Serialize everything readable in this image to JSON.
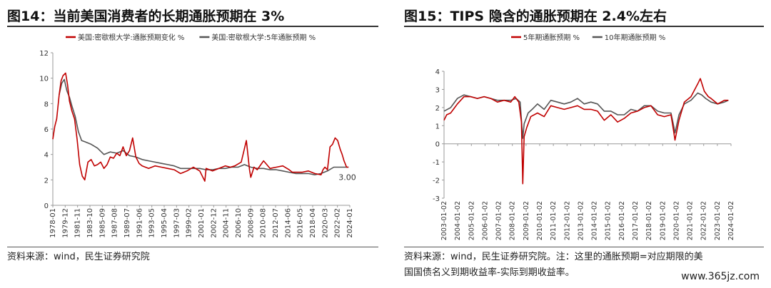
{
  "chart_data": [
    {
      "type": "line",
      "title": "图14：当前美国消费者的长期通胀预期在 3%",
      "xlabel": "",
      "ylabel": "",
      "ylim": [
        0,
        12
      ],
      "yticks": [
        "0",
        "2",
        "4",
        "6",
        "8",
        "10",
        "12"
      ],
      "xlim": [
        1978.0,
        2024.5
      ],
      "xtick_labels": [
        "1978-01",
        "1979-12",
        "1981-11",
        "1983-10",
        "1985-09",
        "1987-08",
        "1989-07",
        "1991-06",
        "1993-05",
        "1995-04",
        "1997-03",
        "1999-02",
        "2001-01",
        "2002-12",
        "2004-11",
        "2006-10",
        "2008-09",
        "2010-08",
        "2012-07",
        "2014-06",
        "2016-05",
        "2018-04",
        "2020-03",
        "2022-02",
        "2024-01"
      ],
      "grid": false,
      "legend": "top",
      "annotation": "3.00",
      "series": [
        {
          "name": "美国:密歇根大学:通胀预期变化 %",
          "color": "#c00000",
          "x": [
            1978.0,
            1978.3,
            1978.6,
            1979.0,
            1979.3,
            1979.6,
            1980.0,
            1980.3,
            1980.6,
            1981.0,
            1981.4,
            1981.8,
            1982.2,
            1982.6,
            1983.0,
            1983.5,
            1984.0,
            1984.5,
            1985.0,
            1985.5,
            1986.0,
            1986.5,
            1987.0,
            1987.5,
            1988.0,
            1988.5,
            1989.0,
            1989.5,
            1990.0,
            1990.5,
            1991.0,
            1991.5,
            1992.0,
            1993.0,
            1994.0,
            1995.0,
            1996.0,
            1997.0,
            1998.0,
            1999.0,
            2000.0,
            2001.0,
            2001.8,
            2002.0,
            2003.0,
            2004.0,
            2005.0,
            2005.8,
            2006.5,
            2007.5,
            2008.3,
            2008.8,
            2009.0,
            2009.5,
            2010.0,
            2011.0,
            2011.5,
            2012.0,
            2013.0,
            2014.0,
            2015.0,
            2015.5,
            2016.0,
            2017.0,
            2018.0,
            2019.0,
            2020.0,
            2020.3,
            2020.6,
            2021.0,
            2021.4,
            2021.8,
            2022.2,
            2022.6,
            2023.0,
            2023.3,
            2023.6,
            2024.0,
            2024.3
          ],
          "values": [
            5.2,
            6.2,
            6.8,
            8.7,
            9.8,
            10.2,
            10.4,
            9.5,
            8.2,
            7.4,
            6.8,
            5.2,
            3.2,
            2.3,
            2.0,
            3.4,
            3.6,
            3.1,
            3.2,
            3.4,
            2.9,
            3.2,
            3.8,
            3.7,
            4.1,
            3.9,
            4.6,
            3.9,
            4.3,
            5.3,
            3.8,
            3.3,
            3.1,
            2.9,
            3.1,
            3.0,
            2.9,
            2.8,
            2.5,
            2.7,
            3.0,
            2.7,
            1.9,
            2.9,
            2.7,
            2.9,
            3.1,
            3.0,
            3.1,
            3.4,
            5.1,
            2.8,
            2.2,
            3.0,
            2.8,
            3.5,
            3.2,
            2.9,
            3.0,
            3.1,
            2.8,
            2.6,
            2.6,
            2.6,
            2.7,
            2.5,
            2.4,
            2.8,
            3.0,
            2.8,
            4.6,
            4.8,
            5.3,
            5.1,
            4.4,
            4.0,
            3.5,
            3.0,
            3.0
          ]
        },
        {
          "name": "美国:密歇根大学:5年通胀预期 %",
          "color": "#555555",
          "x": [
            1979.0,
            1979.4,
            1979.8,
            1980.2,
            1980.6,
            1981.0,
            1981.5,
            1982.0,
            1982.5,
            1983.0,
            1984.0,
            1985.0,
            1986.0,
            1987.0,
            1988.0,
            1989.0,
            1990.0,
            1991.0,
            1992.0,
            1993.0,
            1994.0,
            1995.0,
            1996.0,
            1997.0,
            1998.0,
            1999.0,
            2000.0,
            2001.0,
            2002.0,
            2003.0,
            2004.0,
            2005.0,
            2006.0,
            2007.0,
            2008.0,
            2009.0,
            2010.0,
            2011.0,
            2012.0,
            2013.0,
            2014.0,
            2015.0,
            2016.0,
            2017.0,
            2018.0,
            2019.0,
            2020.0,
            2021.0,
            2022.0,
            2023.0,
            2023.5,
            2024.0,
            2024.3
          ],
          "values": [
            8.7,
            9.6,
            9.9,
            9.0,
            8.5,
            7.8,
            7.0,
            5.8,
            5.1,
            5.0,
            4.8,
            4.5,
            4.0,
            4.2,
            4.1,
            4.3,
            3.9,
            3.8,
            3.6,
            3.5,
            3.4,
            3.3,
            3.2,
            3.1,
            2.9,
            2.9,
            2.9,
            2.9,
            2.8,
            2.8,
            2.9,
            2.9,
            3.0,
            3.0,
            3.2,
            3.0,
            2.9,
            2.9,
            2.8,
            2.8,
            2.7,
            2.6,
            2.5,
            2.5,
            2.5,
            2.4,
            2.5,
            2.7,
            3.0,
            3.0,
            3.0,
            3.0,
            3.0
          ]
        }
      ]
    },
    {
      "type": "line",
      "title": "图15：TIPS 隐含的通胀预期在 2.4%左右",
      "xlabel": "",
      "ylabel": "",
      "ylim": [
        -3,
        4
      ],
      "yticks": [
        "-3",
        "-2",
        "-1",
        "0",
        "1",
        "2",
        "3",
        "4"
      ],
      "xlim": [
        2003.0,
        2024.5
      ],
      "xtick_labels": [
        "2003-01-02",
        "2004-01-02",
        "2005-01-02",
        "2006-01-02",
        "2007-01-02",
        "2008-01-02",
        "2009-01-02",
        "2010-01-02",
        "2011-01-02",
        "2012-01-02",
        "2013-01-02",
        "2014-01-02",
        "2015-01-02",
        "2016-01-02",
        "2017-01-02",
        "2018-01-02",
        "2019-01-02",
        "2020-01-02",
        "2021-01-02",
        "2022-01-02",
        "2023-01-02",
        "2024-01-02"
      ],
      "grid": false,
      "legend": "top",
      "series": [
        {
          "name": "5年期通胀预期 %",
          "color": "#c00000",
          "x": [
            2003.0,
            2003.2,
            2003.5,
            2004.0,
            2004.5,
            2005.0,
            2005.5,
            2006.0,
            2006.5,
            2007.0,
            2007.5,
            2008.0,
            2008.3,
            2008.6,
            2008.8,
            2008.9,
            2009.0,
            2009.2,
            2009.5,
            2010.0,
            2010.5,
            2011.0,
            2011.5,
            2012.0,
            2012.5,
            2013.0,
            2013.5,
            2014.0,
            2014.5,
            2015.0,
            2015.5,
            2016.0,
            2016.5,
            2017.0,
            2017.5,
            2018.0,
            2018.5,
            2019.0,
            2019.5,
            2020.0,
            2020.2,
            2020.3,
            2020.6,
            2021.0,
            2021.5,
            2022.0,
            2022.2,
            2022.5,
            2022.8,
            2023.0,
            2023.5,
            2024.0,
            2024.3
          ],
          "values": [
            1.3,
            1.6,
            1.7,
            2.2,
            2.6,
            2.6,
            2.5,
            2.6,
            2.5,
            2.3,
            2.4,
            2.3,
            2.6,
            2.3,
            1.2,
            -2.2,
            0.4,
            0.9,
            1.5,
            1.7,
            1.5,
            2.1,
            2.0,
            1.9,
            2.0,
            2.1,
            1.9,
            1.9,
            1.8,
            1.3,
            1.6,
            1.2,
            1.4,
            1.7,
            1.8,
            2.0,
            2.1,
            1.6,
            1.5,
            1.6,
            0.7,
            0.2,
            1.3,
            2.3,
            2.6,
            3.3,
            3.6,
            2.9,
            2.6,
            2.5,
            2.2,
            2.4,
            2.4
          ]
        },
        {
          "name": "10年期通胀预期 %",
          "color": "#555555",
          "x": [
            2003.0,
            2003.5,
            2004.0,
            2004.5,
            2005.0,
            2005.5,
            2006.0,
            2006.5,
            2007.0,
            2007.5,
            2008.0,
            2008.4,
            2008.7,
            2008.9,
            2009.0,
            2009.3,
            2009.6,
            2010.0,
            2010.5,
            2011.0,
            2011.5,
            2012.0,
            2012.5,
            2013.0,
            2013.5,
            2014.0,
            2014.5,
            2015.0,
            2015.5,
            2016.0,
            2016.5,
            2017.0,
            2017.5,
            2018.0,
            2018.5,
            2019.0,
            2019.5,
            2020.0,
            2020.2,
            2020.3,
            2020.6,
            2021.0,
            2021.5,
            2022.0,
            2022.3,
            2022.6,
            2023.0,
            2023.5,
            2024.0,
            2024.3
          ],
          "values": [
            1.8,
            2.0,
            2.5,
            2.7,
            2.6,
            2.5,
            2.6,
            2.5,
            2.4,
            2.4,
            2.4,
            2.5,
            2.3,
            0.3,
            1.1,
            1.7,
            1.9,
            2.2,
            1.9,
            2.4,
            2.3,
            2.2,
            2.3,
            2.5,
            2.2,
            2.3,
            2.2,
            1.8,
            1.8,
            1.6,
            1.6,
            1.9,
            1.8,
            2.1,
            2.1,
            1.8,
            1.7,
            1.7,
            1.0,
            0.6,
            1.6,
            2.2,
            2.4,
            2.8,
            2.7,
            2.5,
            2.3,
            2.2,
            2.3,
            2.4
          ]
        }
      ]
    }
  ],
  "sources": {
    "left": "资料来源：wind，民生证券研究院",
    "right_line1": "资料来源：wind，民生证券研究院。注：这里的通胀预期=对应期限的美",
    "right_line2": "国国债名义到期收益率-实际到期收益率。"
  },
  "watermark": "www.365jz.com"
}
